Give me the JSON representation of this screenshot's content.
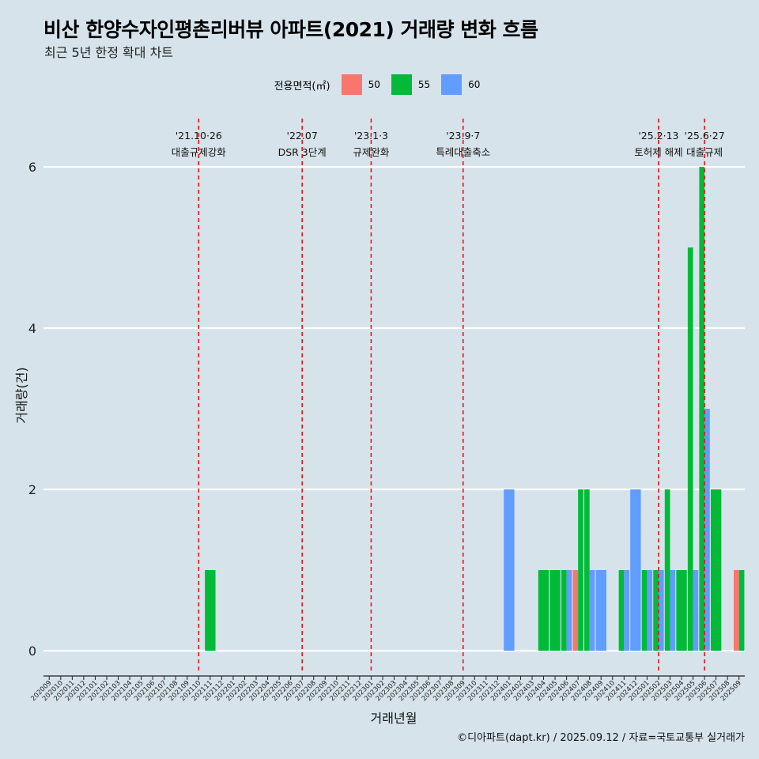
{
  "title": "비산 한양수자인평촌리버뷰 아파트(2021) 거래량 변화 흐름",
  "subtitle": "최근 5년 한정 확대 차트",
  "caption": "©디아파트(dapt.kr) / 2025.09.12 / 자료=국토교통부 실거래가",
  "legend": {
    "title": "전용면적(㎡)",
    "items": [
      {
        "label": "50",
        "color": "#f8766d"
      },
      {
        "label": "55",
        "color": "#00ba38"
      },
      {
        "label": "60",
        "color": "#619cff"
      }
    ]
  },
  "chart_data": {
    "type": "bar",
    "stacked": false,
    "xlabel": "거래년월",
    "ylabel": "거래량(건)",
    "ylim": [
      0,
      6
    ],
    "yticks": [
      0,
      2,
      4,
      6
    ],
    "grid": "horizontal",
    "legend_position": "top",
    "categories": [
      "202009",
      "202010",
      "202011",
      "202012",
      "202101",
      "202102",
      "202103",
      "202104",
      "202105",
      "202106",
      "202107",
      "202108",
      "202109",
      "202110",
      "202111",
      "202112",
      "202201",
      "202202",
      "202203",
      "202204",
      "202205",
      "202206",
      "202207",
      "202208",
      "202209",
      "202210",
      "202211",
      "202212",
      "202301",
      "202302",
      "202303",
      "202304",
      "202305",
      "202306",
      "202307",
      "202308",
      "202309",
      "202310",
      "202311",
      "202312",
      "202401",
      "202402",
      "202403",
      "202404",
      "202405",
      "202406",
      "202407",
      "202408",
      "202409",
      "202410",
      "202411",
      "202412",
      "202501",
      "202502",
      "202503",
      "202504",
      "202505",
      "202506",
      "202507",
      "202508",
      "202509"
    ],
    "series": [
      {
        "name": "50",
        "color": "#f8766d",
        "points": [
          {
            "x": "202407",
            "y": 1
          },
          {
            "x": "202509",
            "y": 1
          }
        ]
      },
      {
        "name": "55",
        "color": "#00ba38",
        "points": [
          {
            "x": "202111",
            "y": 1
          },
          {
            "x": "202404",
            "y": 1
          },
          {
            "x": "202405",
            "y": 1
          },
          {
            "x": "202406",
            "y": 1
          },
          {
            "x": "202407",
            "y": 2
          },
          {
            "x": "202408",
            "y": 2
          },
          {
            "x": "202411",
            "y": 1
          },
          {
            "x": "202501",
            "y": 1
          },
          {
            "x": "202502",
            "y": 1
          },
          {
            "x": "202503",
            "y": 2
          },
          {
            "x": "202504",
            "y": 1
          },
          {
            "x": "202505",
            "y": 5
          },
          {
            "x": "202506",
            "y": 6
          },
          {
            "x": "202507",
            "y": 2
          },
          {
            "x": "202509",
            "y": 1
          }
        ]
      },
      {
        "name": "60",
        "color": "#619cff",
        "points": [
          {
            "x": "202401",
            "y": 2
          },
          {
            "x": "202406",
            "y": 1
          },
          {
            "x": "202408",
            "y": 1
          },
          {
            "x": "202409",
            "y": 1
          },
          {
            "x": "202411",
            "y": 1
          },
          {
            "x": "202412",
            "y": 2
          },
          {
            "x": "202501",
            "y": 1
          },
          {
            "x": "202502",
            "y": 1
          },
          {
            "x": "202503",
            "y": 1
          },
          {
            "x": "202505",
            "y": 1
          },
          {
            "x": "202506",
            "y": 3
          }
        ]
      }
    ],
    "annotations": [
      {
        "x": "202110",
        "line1": "'21.10·26",
        "line2": "대출규제강화"
      },
      {
        "x": "202207",
        "line1": "'22.07",
        "line2": "DSR 3단계"
      },
      {
        "x": "202301",
        "line1": "'23.1·3",
        "line2": "규제완화"
      },
      {
        "x": "202309",
        "line1": "'23.9·7",
        "line2": "특례대출축소"
      },
      {
        "x": "202502",
        "line1": "'25.2·13",
        "line2": "토허제 해제"
      },
      {
        "x": "202506",
        "line1": "'25.6·27",
        "line2": "대출규제"
      }
    ]
  }
}
